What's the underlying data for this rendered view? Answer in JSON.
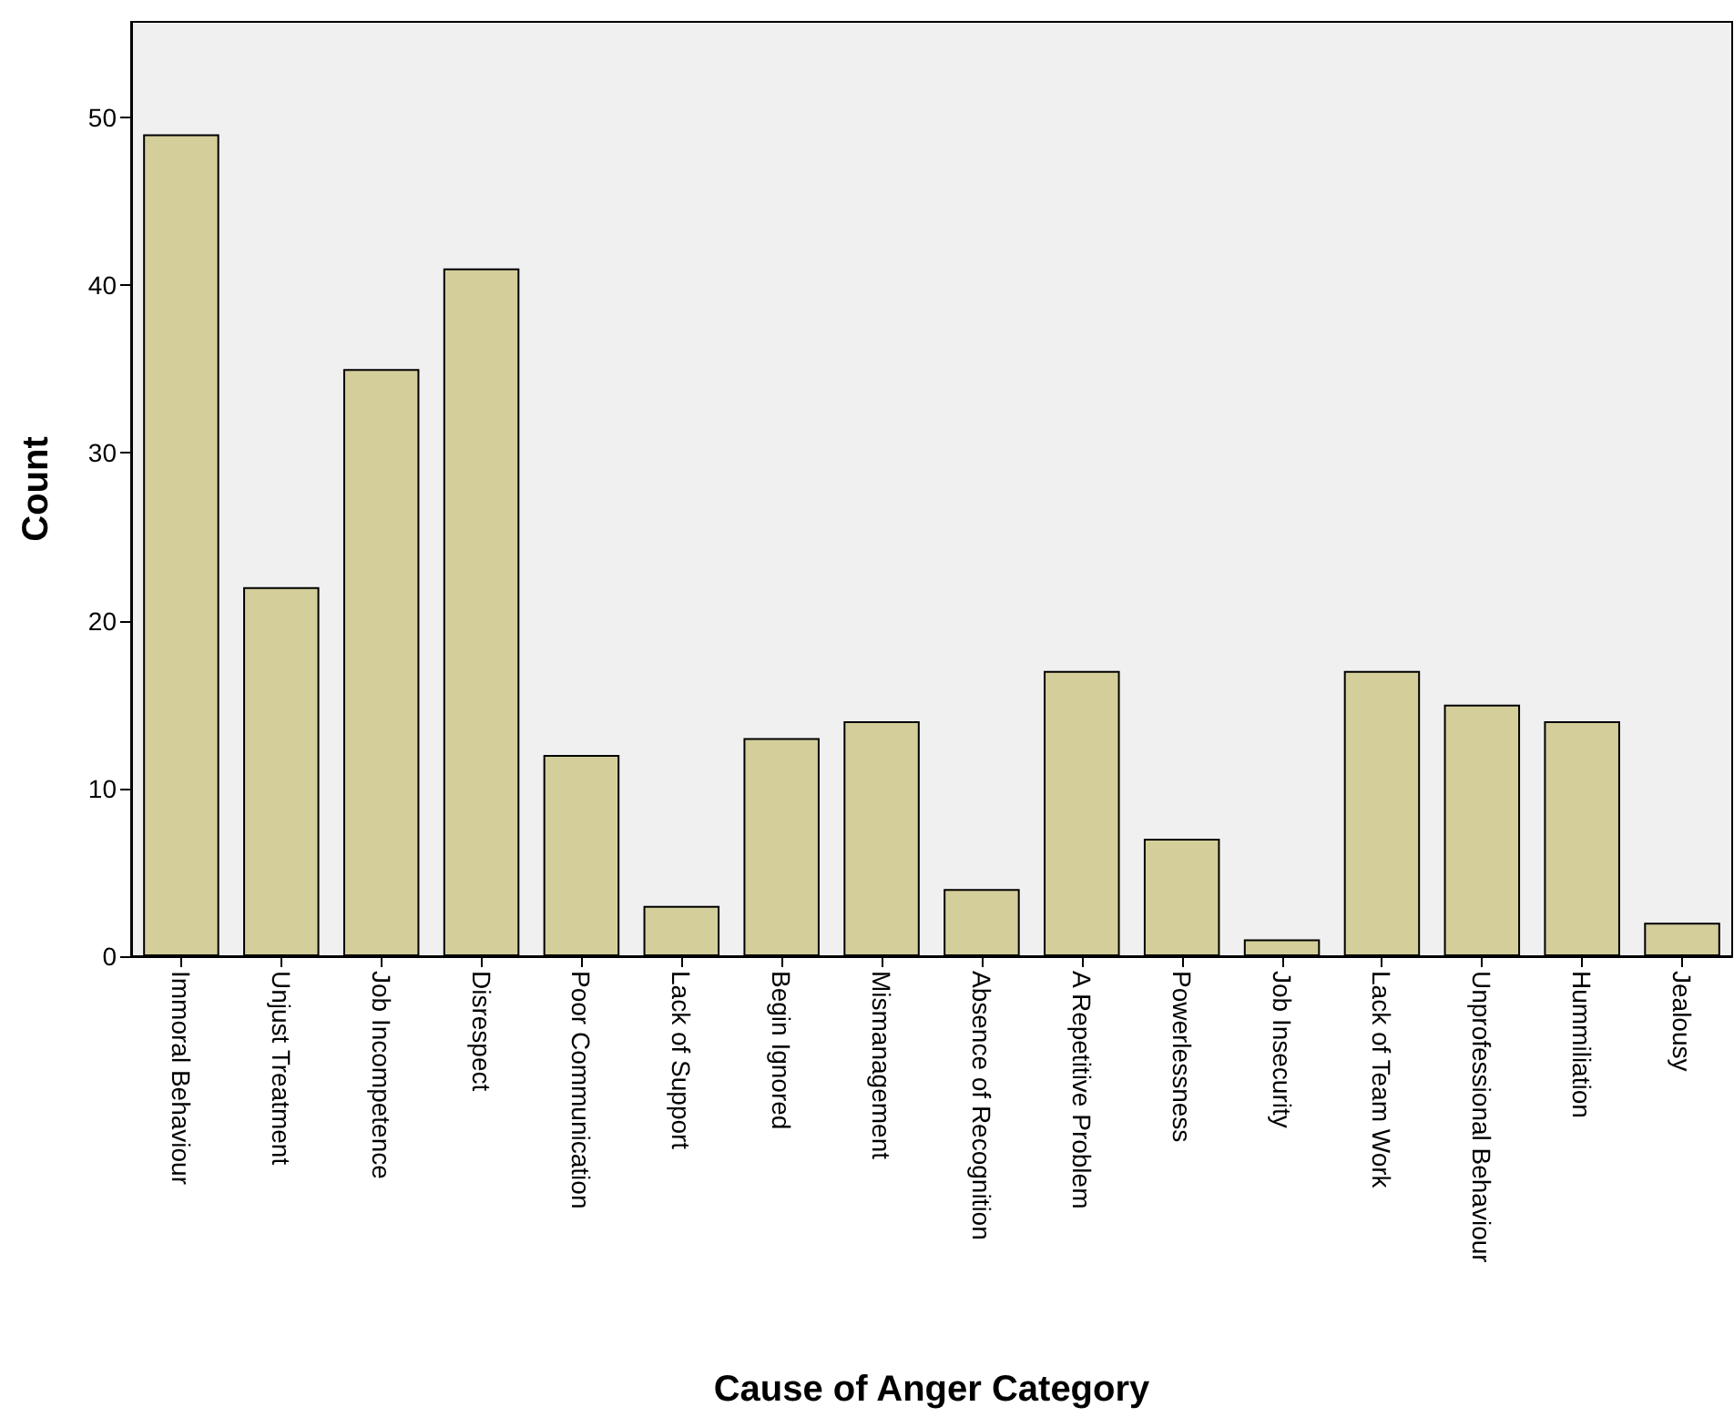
{
  "chart_data": {
    "type": "bar",
    "xlabel": "Cause of Anger Category",
    "ylabel": "Count",
    "categories": [
      "Immoral Behaviour",
      "Unjust Treatment",
      "Job Incompetence",
      "Disrespect",
      "Poor Communication",
      "Lack of Support",
      "Begin Ignored",
      "Mismanagement",
      "Absence of Recognition",
      "A Repetitive Problem",
      "Powerlessness",
      "Job Insecurity",
      "Lack of Team Work",
      "Unprofessional Behaviour",
      "Hummiliation",
      "Jealousy"
    ],
    "values": [
      49,
      22,
      35,
      41,
      12,
      3,
      13,
      14,
      4,
      17,
      7,
      1,
      17,
      15,
      14,
      2
    ],
    "color": "#d3ce9a",
    "ylim": [
      0,
      55.7
    ],
    "yticks": [
      0,
      10,
      20,
      30,
      40,
      50
    ],
    "grid": false
  }
}
